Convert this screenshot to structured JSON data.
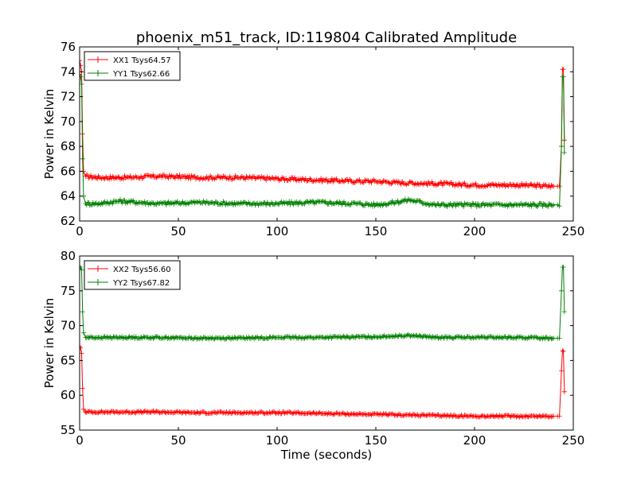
{
  "title": "phoenix_m51_track, ID:119804 Calibrated Amplitude",
  "xlabel": "Time (seconds)",
  "colors": {
    "red": "#ff0000",
    "green": "#008000"
  },
  "chart_data": [
    {
      "type": "line",
      "ylabel": "Power in Kelvin",
      "xlabel": "",
      "xlim": [
        0,
        250
      ],
      "ylim": [
        62,
        76
      ],
      "xticks": [
        "0",
        "50",
        "100",
        "150",
        "200",
        "250"
      ],
      "yticks": [
        "62",
        "64",
        "66",
        "68",
        "70",
        "72",
        "74",
        "76"
      ],
      "legend": {
        "position": "top-left"
      },
      "series": [
        {
          "name": "XX1 Tsys64.57",
          "color": "#ff0000",
          "x": [
            0,
            0.5,
            1,
            1.5,
            2,
            3,
            10,
            25,
            40,
            60,
            80,
            100,
            120,
            140,
            150,
            160,
            180,
            200,
            220,
            240,
            242,
            243,
            244,
            244.5,
            245,
            245.5
          ],
          "y": [
            74.9,
            74.5,
            74.0,
            69.0,
            66.0,
            65.6,
            65.5,
            65.5,
            65.6,
            65.5,
            65.5,
            65.4,
            65.3,
            65.2,
            65.2,
            65.1,
            65.0,
            64.9,
            64.9,
            64.8,
            64.8,
            64.8,
            68.0,
            74.2,
            74.2,
            68.5
          ]
        },
        {
          "name": "YY1 Tsys62.66",
          "color": "#008000",
          "x": [
            0,
            0.5,
            1,
            1.5,
            2,
            3,
            10,
            20,
            40,
            60,
            80,
            100,
            120,
            140,
            150,
            160,
            167,
            180,
            200,
            220,
            240,
            242,
            243,
            244,
            244.5,
            245,
            245.5
          ],
          "y": [
            73.8,
            73.6,
            73.0,
            67.0,
            64.0,
            63.4,
            63.4,
            63.6,
            63.4,
            63.5,
            63.4,
            63.4,
            63.5,
            63.4,
            63.3,
            63.5,
            63.7,
            63.3,
            63.3,
            63.3,
            63.3,
            63.3,
            63.2,
            68.0,
            73.6,
            73.6,
            67.5
          ]
        }
      ]
    },
    {
      "type": "line",
      "ylabel": "Power in Kelvin",
      "xlabel": "Time (seconds)",
      "xlim": [
        0,
        250
      ],
      "ylim": [
        55,
        80
      ],
      "xticks": [
        "0",
        "50",
        "100",
        "150",
        "200",
        "250"
      ],
      "yticks": [
        "55",
        "60",
        "65",
        "70",
        "75",
        "80"
      ],
      "legend": {
        "position": "top-left"
      },
      "series": [
        {
          "name": "XX2 Tsys56.60",
          "color": "#ff0000",
          "x": [
            0,
            0.5,
            1,
            1.5,
            2,
            3,
            10,
            40,
            60,
            80,
            100,
            120,
            140,
            160,
            180,
            200,
            220,
            240,
            242,
            243,
            244,
            244.5,
            245,
            245.5
          ],
          "y": [
            67.0,
            66.8,
            66.0,
            61.0,
            58.0,
            57.6,
            57.6,
            57.6,
            57.5,
            57.5,
            57.5,
            57.4,
            57.3,
            57.2,
            57.1,
            57.0,
            57.0,
            57.0,
            57.0,
            57.0,
            63.5,
            66.4,
            66.3,
            60.5
          ]
        },
        {
          "name": "YY2 Tsys67.82",
          "color": "#008000",
          "x": [
            0,
            0.5,
            1,
            1.5,
            2,
            3,
            10,
            40,
            60,
            80,
            100,
            120,
            150,
            167,
            180,
            200,
            220,
            240,
            242,
            243,
            244,
            244.5,
            245,
            245.5
          ],
          "y": [
            78.5,
            78.3,
            78.0,
            72.0,
            69.0,
            68.3,
            68.3,
            68.3,
            68.2,
            68.2,
            68.3,
            68.3,
            68.4,
            68.6,
            68.3,
            68.3,
            68.3,
            68.2,
            68.2,
            68.2,
            75.0,
            78.4,
            78.4,
            72.0
          ]
        }
      ]
    }
  ]
}
